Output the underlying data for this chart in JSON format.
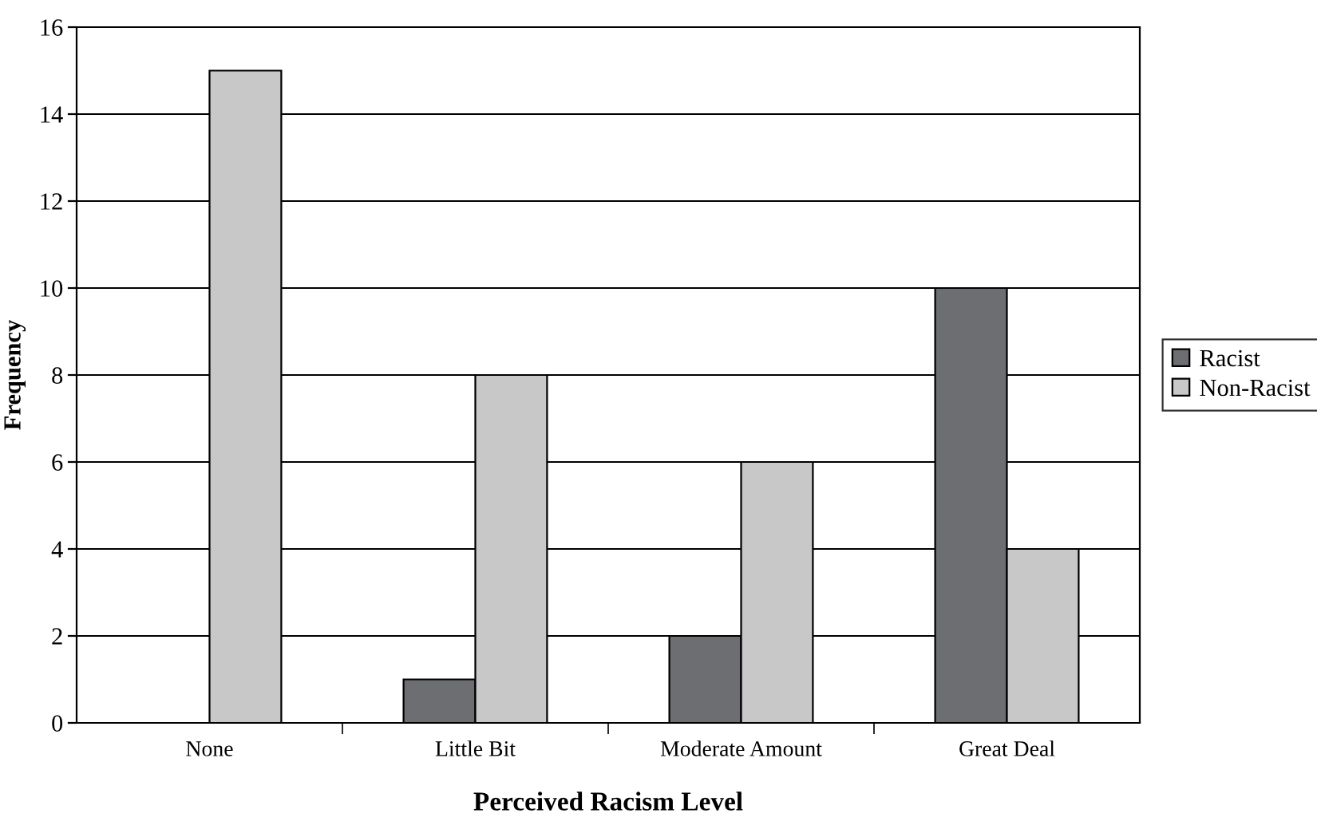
{
  "chart_data": {
    "type": "bar",
    "xlabel": "Perceived Racism Level",
    "ylabel": "Frequency",
    "categories": [
      "None",
      "Little Bit",
      "Moderate Amount",
      "Great Deal"
    ],
    "series": [
      {
        "name": "Racist",
        "color": "#6d6e72",
        "values": [
          null,
          1,
          2,
          10
        ]
      },
      {
        "name": "Non-Racist",
        "color": "#c8c8c8",
        "values": [
          15,
          8,
          6,
          4
        ]
      }
    ],
    "ylim": [
      0,
      16
    ],
    "yticks": [
      0,
      2,
      4,
      6,
      8,
      10,
      12,
      14,
      16
    ],
    "grid": "y",
    "legend": "right"
  }
}
